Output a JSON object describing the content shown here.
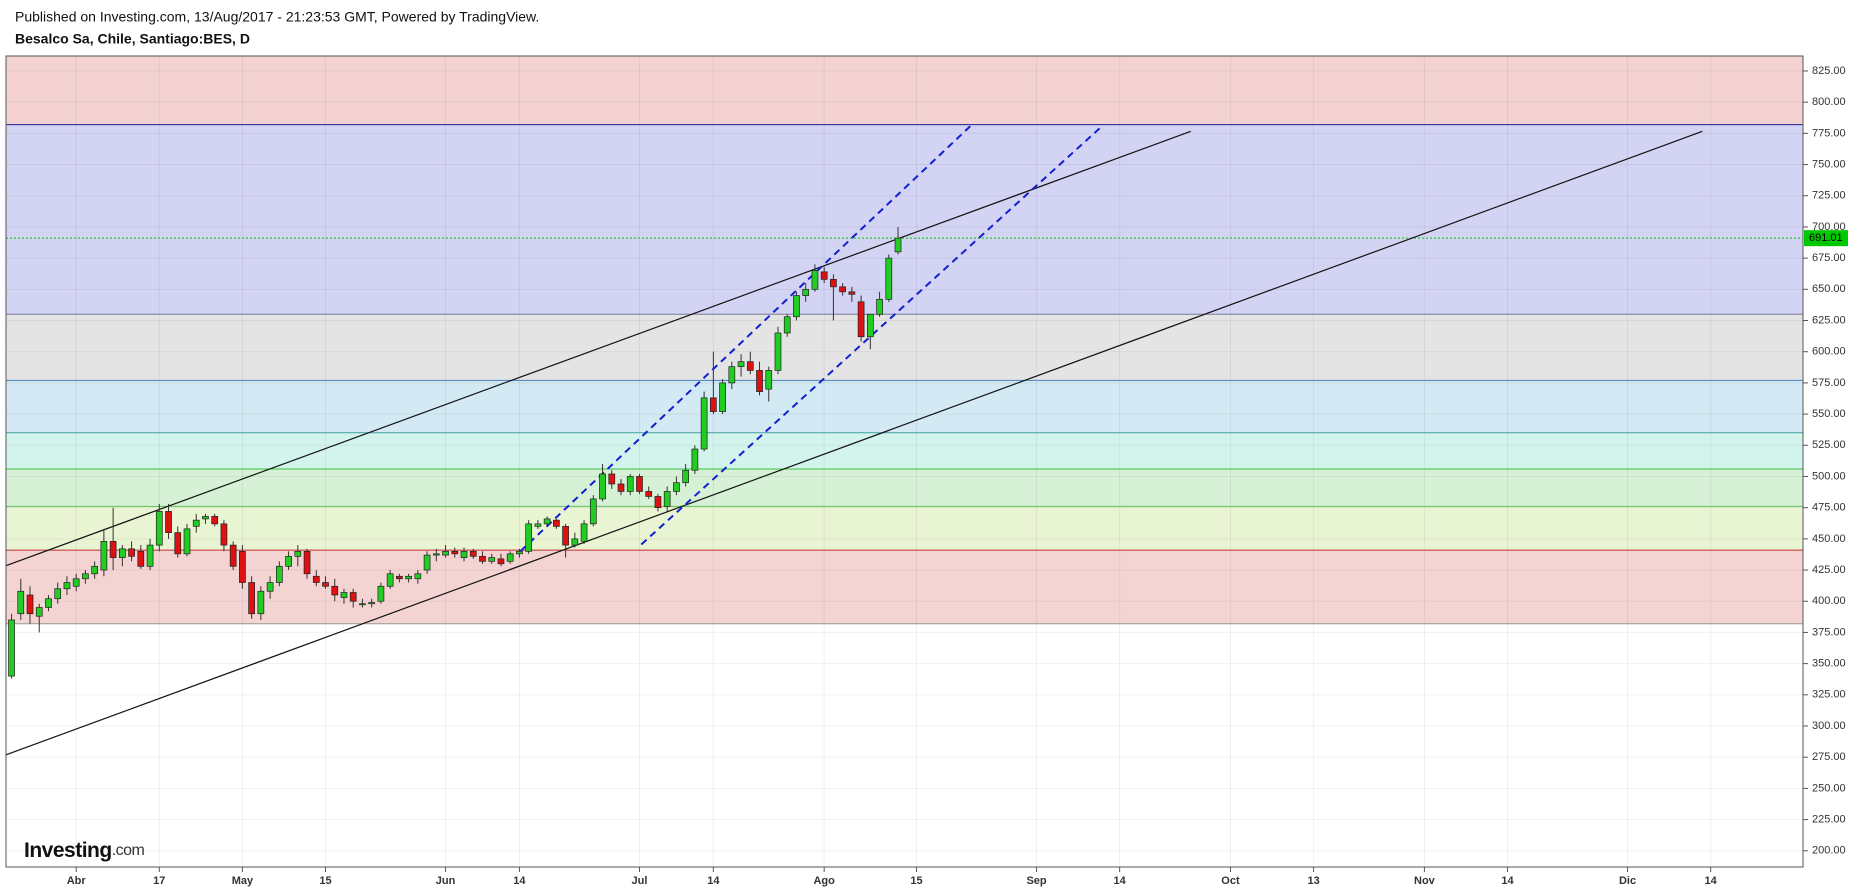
{
  "chart_data": {
    "type": "candlestick",
    "published": "Published on Investing.com, 13/Aug/2017 - 21:23:53 GMT, Powered by TradingView.",
    "title": "Besalco Sa, Chile, Santiago:BES, D",
    "logo_main": "Investing",
    "logo_suffix": ".com",
    "up_color": "#22cc22",
    "down_color": "#dd1111",
    "x": [
      0,
      1,
      2,
      3,
      4,
      5,
      6,
      7,
      8,
      9,
      10,
      11,
      12,
      13,
      14,
      15,
      16,
      17,
      18,
      19,
      20,
      21,
      22,
      23,
      24,
      25,
      26,
      27,
      28,
      29,
      30,
      31,
      32,
      33,
      34,
      35,
      36,
      37,
      38,
      39,
      40,
      41,
      42,
      43,
      44,
      45,
      46,
      47,
      48,
      49,
      50,
      51,
      52,
      53,
      54,
      55,
      56,
      57,
      58,
      59,
      60,
      61,
      62,
      63,
      64,
      65,
      66,
      67,
      68,
      69,
      70,
      71,
      72,
      73,
      74,
      75,
      76,
      77,
      78,
      79,
      80,
      81,
      82,
      83,
      84,
      85,
      86,
      87,
      88,
      89,
      90,
      91,
      92,
      93,
      94,
      95,
      96
    ],
    "open": [
      340,
      390,
      405,
      388,
      395,
      402,
      410,
      412,
      418,
      422,
      425,
      448,
      435,
      442,
      440,
      428,
      445,
      472,
      455,
      438,
      460,
      466,
      468,
      462,
      445,
      440,
      415,
      390,
      408,
      415,
      428,
      436,
      440,
      420,
      415,
      412,
      403,
      407,
      398,
      398,
      400,
      412,
      420,
      418,
      418,
      425,
      437,
      437,
      440,
      435,
      440,
      436,
      432,
      434,
      432,
      438,
      440,
      460,
      462,
      465,
      460,
      445,
      448,
      462,
      482,
      502,
      494,
      488,
      500,
      488,
      484,
      476,
      488,
      495,
      505,
      522,
      563,
      552,
      575,
      588,
      592,
      585,
      570,
      585,
      615,
      628,
      645,
      650,
      664,
      658,
      652,
      648,
      640,
      612,
      630,
      642,
      680
    ],
    "high": [
      390,
      418,
      412,
      398,
      405,
      415,
      420,
      422,
      425,
      432,
      458,
      475,
      445,
      448,
      445,
      450,
      478,
      478,
      460,
      462,
      470,
      470,
      470,
      465,
      448,
      445,
      420,
      412,
      420,
      432,
      440,
      445,
      442,
      425,
      420,
      418,
      410,
      410,
      402,
      402,
      415,
      425,
      422,
      422,
      425,
      440,
      442,
      445,
      443,
      443,
      442,
      440,
      438,
      438,
      440,
      442,
      465,
      465,
      468,
      466,
      462,
      455,
      465,
      485,
      510,
      505,
      498,
      502,
      502,
      492,
      486,
      492,
      500,
      510,
      525,
      568,
      600,
      578,
      592,
      598,
      600,
      592,
      588,
      620,
      630,
      648,
      655,
      670,
      668,
      662,
      655,
      652,
      645,
      630,
      648,
      678,
      700
    ],
    "low": [
      338,
      385,
      382,
      375,
      392,
      398,
      405,
      408,
      414,
      418,
      420,
      425,
      428,
      432,
      426,
      425,
      440,
      450,
      435,
      436,
      455,
      462,
      460,
      440,
      425,
      410,
      386,
      385,
      402,
      412,
      425,
      428,
      418,
      412,
      410,
      400,
      398,
      395,
      395,
      395,
      398,
      410,
      415,
      415,
      414,
      422,
      432,
      435,
      435,
      432,
      434,
      430,
      430,
      428,
      430,
      435,
      438,
      458,
      460,
      458,
      435,
      443,
      446,
      460,
      480,
      490,
      485,
      485,
      486,
      482,
      472,
      472,
      485,
      492,
      502,
      520,
      550,
      550,
      570,
      580,
      582,
      565,
      560,
      582,
      612,
      625,
      640,
      648,
      655,
      625,
      645,
      640,
      608,
      602,
      628,
      640,
      678
    ],
    "close": [
      385,
      408,
      390,
      395,
      402,
      410,
      415,
      418,
      422,
      428,
      448,
      435,
      442,
      436,
      428,
      445,
      472,
      455,
      438,
      458,
      465,
      468,
      462,
      445,
      428,
      415,
      390,
      408,
      415,
      428,
      436,
      440,
      422,
      415,
      412,
      405,
      407,
      400,
      398,
      399,
      412,
      422,
      418,
      420,
      422,
      437,
      438,
      440,
      438,
      440,
      436,
      432,
      435,
      430,
      438,
      440,
      462,
      462,
      466,
      460,
      445,
      450,
      462,
      482,
      502,
      494,
      488,
      500,
      488,
      484,
      475,
      488,
      495,
      505,
      522,
      563,
      552,
      575,
      588,
      592,
      585,
      568,
      585,
      615,
      628,
      645,
      650,
      665,
      658,
      652,
      648,
      646,
      612,
      630,
      642,
      675,
      691.01
    ],
    "last_price": 691.01,
    "last_color": "#00c800",
    "zones": [
      {
        "low": 782,
        "high": 837,
        "color": "#f4d2d2",
        "line": "#1f1f8f"
      },
      {
        "low": 630,
        "high": 782,
        "color": "#d3d3f4",
        "line": "#7a7a9a"
      },
      {
        "low": 577,
        "high": 630,
        "color": "#e4e4e4",
        "line": "#4a7fc0"
      },
      {
        "low": 535,
        "high": 577,
        "color": "#d3e9f4",
        "line": "#40a0a0"
      },
      {
        "low": 506,
        "high": 535,
        "color": "#d3f4ec",
        "line": "#3cbf3c"
      },
      {
        "low": 476,
        "high": 506,
        "color": "#d6f1d6",
        "line": "#60c060"
      },
      {
        "low": 441,
        "high": 476,
        "color": "#e9f4d3",
        "line": "#c03030"
      },
      {
        "low": 382,
        "high": 441,
        "color": "#f4d3d3",
        "line": "#999999"
      }
    ],
    "trendlines": [
      {
        "x": [
          -0.64,
          127.7
        ],
        "y": [
          428.4,
          776.6
        ],
        "color": "#111111",
        "dashed": false
      },
      {
        "x": [
          -0.64,
          183.1
        ],
        "y": [
          276.8,
          776.6
        ],
        "color": "#111111",
        "dashed": false
      },
      {
        "x": [
          55.1,
          104
        ],
        "y": [
          440,
          782
        ],
        "color": "#1020d0",
        "dashed": true
      },
      {
        "x": [
          68.2,
          117.9
        ],
        "y": [
          445.5,
          779.5
        ],
        "color": "#1020d0",
        "dashed": true
      }
    ],
    "xlim": [
      -0.6,
      194
    ],
    "ylim": [
      187,
      837
    ],
    "xticks": [
      {
        "value": 7,
        "label": "Abr"
      },
      {
        "value": 16,
        "label": "17"
      },
      {
        "value": 25,
        "label": "May"
      },
      {
        "value": 34,
        "label": "15"
      },
      {
        "value": 47,
        "label": "Jun"
      },
      {
        "value": 55,
        "label": "14"
      },
      {
        "value": 68,
        "label": "Jul"
      },
      {
        "value": 76,
        "label": "14"
      },
      {
        "value": 88,
        "label": "Ago"
      },
      {
        "value": 98,
        "label": "15"
      },
      {
        "value": 111,
        "label": "Sep"
      },
      {
        "value": 120,
        "label": "14"
      },
      {
        "value": 132,
        "label": "Oct"
      },
      {
        "value": 141,
        "label": "13"
      },
      {
        "value": 153,
        "label": "Nov"
      },
      {
        "value": 162,
        "label": "14"
      },
      {
        "value": 175,
        "label": "Dic"
      },
      {
        "value": 184,
        "label": "14"
      }
    ],
    "yticks": [
      {
        "value": 200,
        "label": "200.00"
      },
      {
        "value": 225,
        "label": "225.00"
      },
      {
        "value": 250,
        "label": "250.00"
      },
      {
        "value": 275,
        "label": "275.00"
      },
      {
        "value": 300,
        "label": "300.00"
      },
      {
        "value": 325,
        "label": "325.00"
      },
      {
        "value": 350,
        "label": "350.00"
      },
      {
        "value": 375,
        "label": "375.00"
      },
      {
        "value": 400,
        "label": "400.00"
      },
      {
        "value": 425,
        "label": "425.00"
      },
      {
        "value": 450,
        "label": "450.00"
      },
      {
        "value": 475,
        "label": "475.00"
      },
      {
        "value": 500,
        "label": "500.00"
      },
      {
        "value": 525,
        "label": "525.00"
      },
      {
        "value": 550,
        "label": "550.00"
      },
      {
        "value": 575,
        "label": "575.00"
      },
      {
        "value": 600,
        "label": "600.00"
      },
      {
        "value": 625,
        "label": "625.00"
      },
      {
        "value": 650,
        "label": "650.00"
      },
      {
        "value": 675,
        "label": "675.00"
      },
      {
        "value": 700,
        "label": "700.00"
      },
      {
        "value": 725,
        "label": "725.00"
      },
      {
        "value": 750,
        "label": "750.00"
      },
      {
        "value": 775,
        "label": "775.00"
      },
      {
        "value": 800,
        "label": "800.00"
      },
      {
        "value": 825,
        "label": "825.00"
      }
    ],
    "grid": true
  }
}
